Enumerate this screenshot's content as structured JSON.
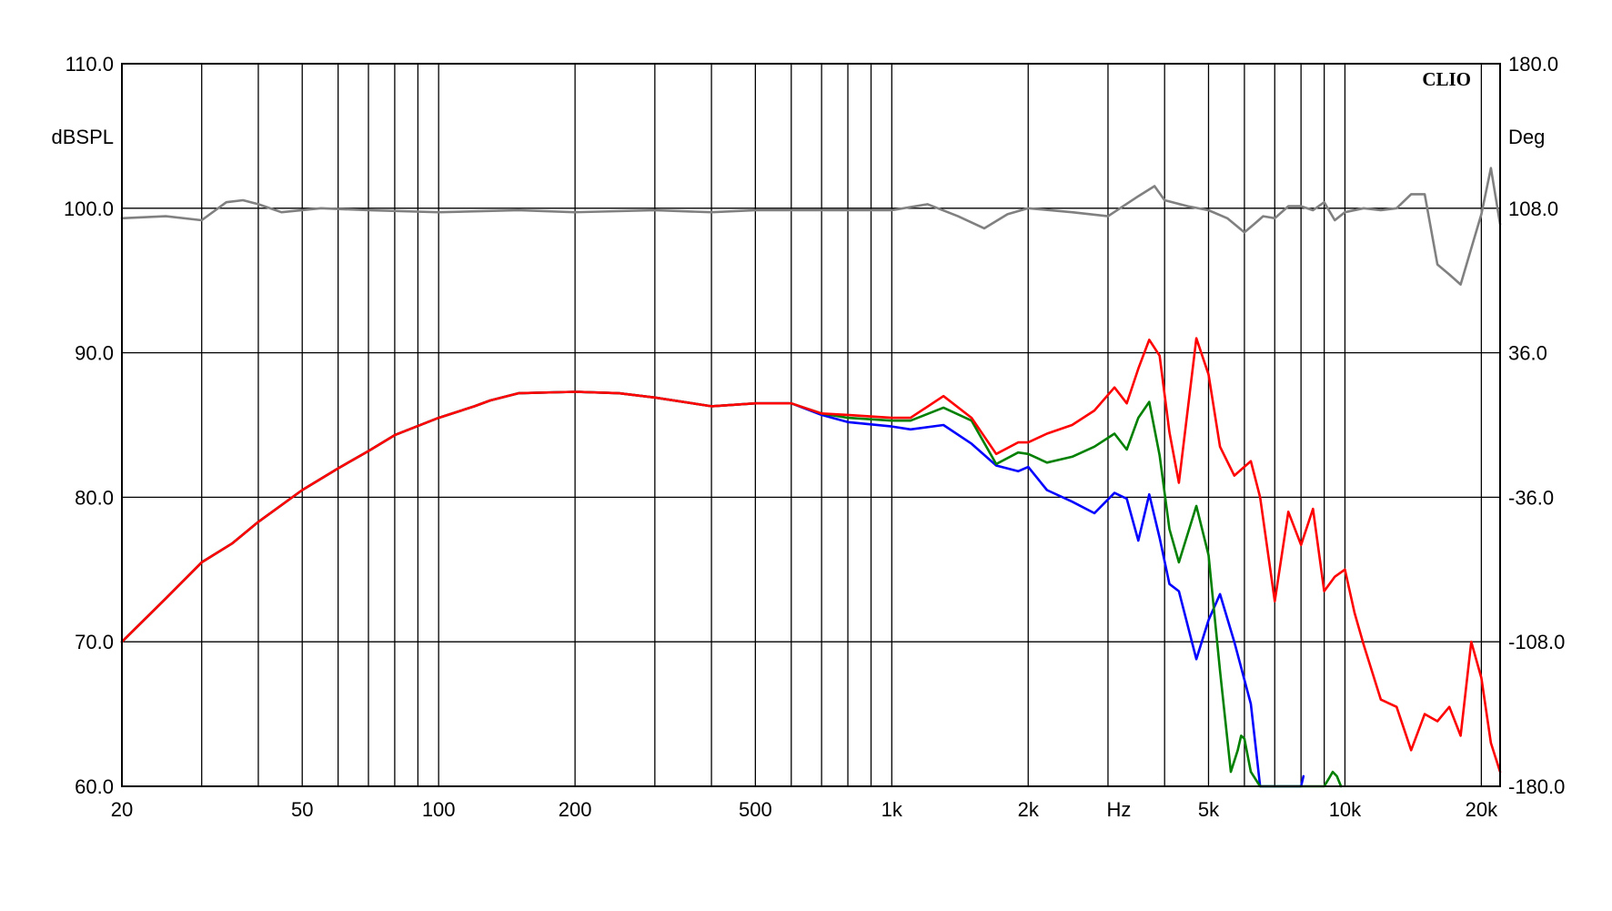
{
  "chart_data": {
    "type": "line",
    "brand": "CLIO",
    "x_scale": "log",
    "xlim": [
      20,
      22000
    ],
    "ylim_left": [
      60,
      110
    ],
    "ylim_right": [
      -180,
      180
    ],
    "ylabel_left": "dBSPL",
    "ylabel_right": "Deg",
    "xlabel": "Hz",
    "x_tick_labels": [
      {
        "value": 20,
        "label": "20"
      },
      {
        "value": 50,
        "label": "50"
      },
      {
        "value": 100,
        "label": "100"
      },
      {
        "value": 200,
        "label": "200"
      },
      {
        "value": 500,
        "label": "500"
      },
      {
        "value": 1000,
        "label": "1k"
      },
      {
        "value": 2000,
        "label": "2k"
      },
      {
        "value": 5000,
        "label": "5k"
      },
      {
        "value": 10000,
        "label": "10k"
      },
      {
        "value": 20000,
        "label": "20k"
      }
    ],
    "x_gridlines": [
      20,
      30,
      40,
      50,
      60,
      70,
      80,
      90,
      100,
      200,
      300,
      400,
      500,
      600,
      700,
      800,
      900,
      1000,
      2000,
      3000,
      4000,
      5000,
      6000,
      7000,
      8000,
      9000,
      10000,
      20000
    ],
    "y_ticks_left": [
      {
        "value": 60,
        "label": "60.0"
      },
      {
        "value": 70,
        "label": "70.0"
      },
      {
        "value": 80,
        "label": "80.0"
      },
      {
        "value": 90,
        "label": "90.0"
      },
      {
        "value": 100,
        "label": "100.0"
      },
      {
        "value": 110,
        "label": "110.0"
      }
    ],
    "y_ticks_right": [
      {
        "value": -180,
        "label": "-180.0"
      },
      {
        "value": -108,
        "label": "-108.0"
      },
      {
        "value": -36,
        "label": "-36.0"
      },
      {
        "value": 36,
        "label": "36.0"
      },
      {
        "value": 108,
        "label": "108.0"
      },
      {
        "value": 180,
        "label": "180.0"
      }
    ],
    "grid": true,
    "series": [
      {
        "color": "#808080",
        "axis": "right",
        "x": [
          20,
          25,
          30,
          34,
          37,
          40,
          45,
          55,
          70,
          100,
          150,
          200,
          300,
          400,
          500,
          600,
          800,
          1000,
          1200,
          1400,
          1600,
          1800,
          2000,
          2500,
          3000,
          3500,
          3800,
          4000,
          4500,
          5000,
          5500,
          6000,
          6300,
          6600,
          7000,
          7500,
          8000,
          8500,
          9000,
          9500,
          10000,
          11000,
          12000,
          13000,
          14000,
          15000,
          16000,
          17000,
          18000,
          19000,
          20000,
          21000,
          22000
        ],
        "y": [
          103,
          104,
          102,
          111,
          112,
          110,
          106,
          108,
          107,
          106,
          107,
          106,
          107,
          106,
          107,
          107,
          107,
          107,
          110,
          104,
          98,
          105,
          108,
          106,
          104,
          114,
          119,
          112,
          109,
          107,
          103,
          96,
          100,
          104,
          103,
          109,
          109,
          107,
          111,
          102,
          106,
          108,
          107,
          108,
          115,
          115,
          80,
          75,
          70,
          88,
          105,
          128,
          100
        ]
      },
      {
        "color": "#0000ff",
        "axis": "left",
        "x": [
          20,
          25,
          30,
          35,
          40,
          50,
          60,
          70,
          80,
          100,
          120,
          130,
          150,
          200,
          250,
          300,
          400,
          500,
          600,
          700,
          800,
          1000,
          1100,
          1300,
          1500,
          1700,
          1900,
          2000,
          2200,
          2500,
          2800,
          3100,
          3300,
          3500,
          3700,
          3900,
          4100,
          4300,
          4700,
          5000,
          5300,
          5700,
          6200,
          6500,
          8000,
          8100
        ],
        "y": [
          70,
          73,
          75.5,
          76.8,
          78.3,
          80.5,
          82,
          83.2,
          84.3,
          85.5,
          86.3,
          86.7,
          87.2,
          87.3,
          87.2,
          86.9,
          86.3,
          86.5,
          86.5,
          85.7,
          85.2,
          84.9,
          84.7,
          85,
          83.7,
          82.2,
          81.8,
          82.1,
          80.5,
          79.7,
          78.9,
          80.3,
          79.9,
          77,
          80.2,
          77.2,
          74,
          73.5,
          68.8,
          71.5,
          73.3,
          70,
          65.7,
          60,
          60,
          60.7
        ]
      },
      {
        "color": "#008000",
        "axis": "left",
        "x": [
          20,
          25,
          30,
          35,
          40,
          50,
          60,
          70,
          80,
          100,
          120,
          130,
          150,
          200,
          250,
          300,
          400,
          500,
          600,
          700,
          800,
          1000,
          1100,
          1300,
          1500,
          1700,
          1900,
          2000,
          2200,
          2500,
          2800,
          3100,
          3300,
          3500,
          3700,
          3900,
          4100,
          4300,
          4700,
          5000,
          5300,
          5600,
          5800,
          5900,
          6000,
          6200,
          6500,
          6700,
          9000,
          9200,
          9400,
          9600,
          9800
        ],
        "y": [
          70,
          73,
          75.5,
          76.8,
          78.3,
          80.5,
          82,
          83.2,
          84.3,
          85.5,
          86.3,
          86.7,
          87.2,
          87.3,
          87.2,
          86.9,
          86.3,
          86.5,
          86.5,
          85.8,
          85.5,
          85.3,
          85.3,
          86.2,
          85.3,
          82.3,
          83.1,
          83,
          82.4,
          82.8,
          83.5,
          84.4,
          83.3,
          85.5,
          86.6,
          82.9,
          77.8,
          75.5,
          79.4,
          76,
          68,
          61,
          62.5,
          63.5,
          63.3,
          61,
          60,
          60,
          60,
          60.5,
          61,
          60.7,
          60
        ]
      },
      {
        "color": "#ff0000",
        "axis": "left",
        "x": [
          20,
          25,
          30,
          35,
          40,
          50,
          60,
          70,
          80,
          100,
          120,
          130,
          150,
          200,
          250,
          300,
          400,
          500,
          600,
          700,
          800,
          1000,
          1100,
          1300,
          1500,
          1700,
          1900,
          2000,
          2200,
          2500,
          2800,
          3100,
          3300,
          3500,
          3700,
          3900,
          4100,
          4300,
          4700,
          5000,
          5300,
          5700,
          6200,
          6500,
          7000,
          7500,
          8000,
          8500,
          9000,
          9500,
          10000,
          10500,
          11000,
          12000,
          13000,
          14000,
          15000,
          16000,
          17000,
          18000,
          19000,
          20000,
          21000,
          22000
        ],
        "y": [
          70,
          73,
          75.5,
          76.8,
          78.3,
          80.5,
          82,
          83.2,
          84.3,
          85.5,
          86.3,
          86.7,
          87.2,
          87.3,
          87.2,
          86.9,
          86.3,
          86.5,
          86.5,
          85.8,
          85.7,
          85.5,
          85.5,
          87,
          85.5,
          83,
          83.8,
          83.8,
          84.4,
          85,
          86,
          87.6,
          86.5,
          88.9,
          90.9,
          89.8,
          84.5,
          81,
          91,
          88.5,
          83.5,
          81.5,
          82.5,
          80,
          72.8,
          79,
          76.7,
          79.2,
          73.5,
          74.5,
          75,
          72,
          69.8,
          66,
          65.5,
          62.5,
          65,
          64.5,
          65.5,
          63.5,
          70,
          67.5,
          63,
          61
        ]
      }
    ]
  }
}
